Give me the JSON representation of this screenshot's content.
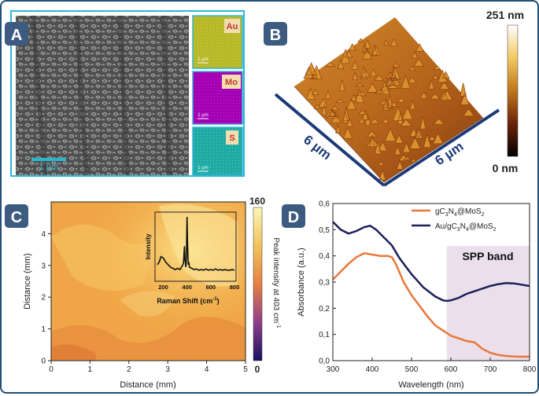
{
  "panels": {
    "A": {
      "letter": "A",
      "scale_bar": "1 µm",
      "maps": [
        {
          "element": "Au",
          "scale": "1 µm",
          "color": "#b7b82a"
        },
        {
          "element": "Mo",
          "scale": "1 µm",
          "color": "#a400b4"
        },
        {
          "element": "S",
          "scale": "1 µm",
          "color": "#1faaa4"
        }
      ]
    },
    "B": {
      "letter": "B",
      "axis_x": "6 µm",
      "axis_y": "6 µm",
      "colorbar_max": "251 nm",
      "colorbar_min": "0 nm"
    },
    "C": {
      "letter": "C",
      "xlabel": "Distance (mm)",
      "ylabel": "Distance (mm)",
      "xticks": [
        "0",
        "1",
        "2",
        "3",
        "4",
        "5"
      ],
      "yticks": [
        "0",
        "1",
        "2",
        "3",
        "4"
      ],
      "colorbar_label": "Peak intensity at 403 cm",
      "colorbar_label_sup": "-1",
      "colorbar_max": "160",
      "colorbar_min": "0",
      "inset": {
        "ylabel": "Intensity",
        "xlabel": "Raman Shift (cm",
        "xlabel_sup": "-1",
        "xlabel_end": ")",
        "xticks": [
          "200",
          "400",
          "600",
          "800"
        ]
      }
    },
    "D": {
      "letter": "D",
      "band_label": "SPP band",
      "ylabel": "Absorbance (a.u.)",
      "xlabel": "Wavelength (nm)"
    }
  },
  "colors": {
    "frame": "#1f4e79",
    "badge": "#3d5a80",
    "cyan_border": "#2fb5d6",
    "orange_series": "#e8783a",
    "navy_series": "#1c1f5a",
    "spp_band": "#e6d9e6"
  },
  "chart_data": [
    {
      "type": "heatmap",
      "panel": "C",
      "xlabel": "Distance (mm)",
      "ylabel": "Distance (mm)",
      "xlim": [
        0,
        5
      ],
      "ylim": [
        0,
        5
      ],
      "colorbar_range": [
        0,
        160
      ],
      "colorbar_label": "Peak intensity at 403 cm-1"
    },
    {
      "type": "line",
      "panel": "C-inset",
      "xlabel": "Raman Shift (cm-1)",
      "ylabel": "Intensity",
      "xlim": [
        150,
        800
      ],
      "x": [
        150,
        165,
        180,
        200,
        220,
        240,
        260,
        280,
        300,
        320,
        340,
        360,
        370,
        378,
        383,
        390,
        395,
        400,
        405,
        410,
        415,
        420,
        440,
        460,
        480,
        500,
        520,
        540,
        560,
        580,
        600,
        620,
        640,
        660,
        680,
        700,
        720,
        740,
        760,
        780,
        800
      ],
      "y": [
        0.22,
        0.26,
        0.35,
        0.33,
        0.26,
        0.22,
        0.18,
        0.16,
        0.14,
        0.16,
        0.14,
        0.2,
        0.25,
        0.52,
        0.3,
        0.18,
        0.35,
        1.0,
        0.55,
        0.22,
        0.26,
        0.18,
        0.16,
        0.14,
        0.15,
        0.13,
        0.14,
        0.13,
        0.15,
        0.13,
        0.14,
        0.13,
        0.15,
        0.13,
        0.14,
        0.13,
        0.14,
        0.13,
        0.13,
        0.14,
        0.13
      ]
    },
    {
      "type": "line",
      "panel": "D",
      "xlabel": "Wavelength (nm)",
      "ylabel": "Absorbance (a.u.)",
      "xlim": [
        300,
        800
      ],
      "ylim": [
        0.0,
        0.6
      ],
      "xticks": [
        "300",
        "400",
        "500",
        "600",
        "700",
        "800"
      ],
      "yticks": [
        "0,0",
        "0,1",
        "0,2",
        "0,3",
        "0,4",
        "0,5",
        "0,6"
      ],
      "shaded_region": [
        590,
        800
      ],
      "series": [
        {
          "label_parts": [
            "gC",
            "3",
            "N",
            "4",
            "@MoS",
            "2"
          ],
          "x": [
            300,
            320,
            340,
            360,
            380,
            400,
            420,
            440,
            450,
            460,
            480,
            500,
            520,
            540,
            560,
            580,
            600,
            620,
            640,
            660,
            680,
            700,
            720,
            740,
            760,
            780,
            800
          ],
          "y": [
            0.31,
            0.34,
            0.37,
            0.395,
            0.41,
            0.405,
            0.4,
            0.4,
            0.395,
            0.37,
            0.3,
            0.25,
            0.21,
            0.17,
            0.135,
            0.115,
            0.095,
            0.085,
            0.075,
            0.07,
            0.045,
            0.03,
            0.022,
            0.018,
            0.016,
            0.015,
            0.015
          ]
        },
        {
          "label_parts": [
            "Au/gC",
            "3",
            "N",
            "4",
            "@MoS",
            "2"
          ],
          "x": [
            300,
            320,
            340,
            360,
            380,
            395,
            410,
            430,
            450,
            470,
            500,
            530,
            560,
            580,
            590,
            600,
            620,
            640,
            660,
            680,
            700,
            720,
            740,
            760,
            780,
            800
          ],
          "y": [
            0.53,
            0.5,
            0.485,
            0.495,
            0.51,
            0.515,
            0.5,
            0.47,
            0.44,
            0.39,
            0.33,
            0.28,
            0.245,
            0.23,
            0.228,
            0.23,
            0.24,
            0.255,
            0.265,
            0.275,
            0.285,
            0.292,
            0.296,
            0.295,
            0.29,
            0.285
          ]
        }
      ]
    }
  ]
}
